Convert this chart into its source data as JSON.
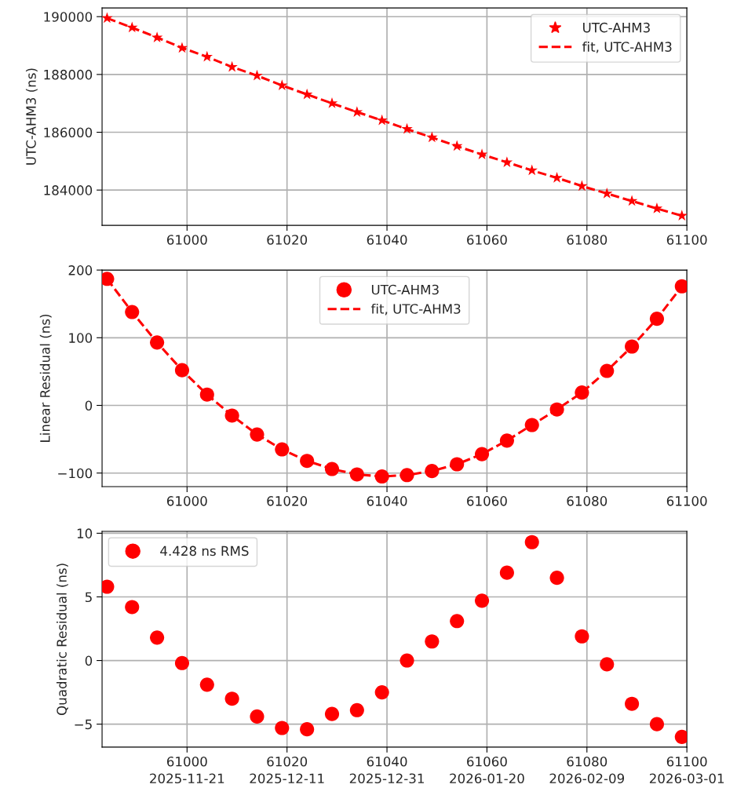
{
  "chart_data": [
    {
      "type": "scatter",
      "ylabel": "UTC-AHM3 (ns)",
      "xlim": [
        60983,
        61100
      ],
      "ylim": [
        182780,
        190300
      ],
      "xticks": [
        61000,
        61020,
        61040,
        61060,
        61080,
        61100
      ],
      "yticks": [
        184000,
        186000,
        188000,
        190000
      ],
      "grid": true,
      "legend": "top right",
      "x": [
        60984,
        60989,
        60994,
        60999,
        61004,
        61009,
        61014,
        61019,
        61024,
        61029,
        61034,
        61039,
        61044,
        61049,
        61054,
        61059,
        61064,
        61069,
        61074,
        61079,
        61084,
        61089,
        61094,
        61099
      ],
      "series": [
        {
          "name": "UTC-AHM3",
          "marker": "star",
          "color": "#ff0000",
          "values": [
            189950,
            189620,
            189280,
            188920,
            188610,
            188260,
            187960,
            187620,
            187310,
            187000,
            186700,
            186410,
            186110,
            185820,
            185520,
            185230,
            184960,
            184680,
            184420,
            184140,
            183880,
            183620,
            183360,
            183110
          ]
        },
        {
          "name": "fit, UTC-AHM3",
          "type": "line",
          "marker": "none",
          "line_style": "dashed",
          "color": "#ff0000",
          "values": [
            189950,
            189620,
            189280,
            188920,
            188610,
            188260,
            187960,
            187620,
            187310,
            187000,
            186700,
            186410,
            186110,
            185820,
            185520,
            185230,
            184960,
            184680,
            184420,
            184140,
            183880,
            183620,
            183360,
            183110
          ]
        }
      ]
    },
    {
      "type": "scatter",
      "ylabel": "Linear Residual (ns)",
      "xlim": [
        60983,
        61100
      ],
      "ylim": [
        -120,
        200
      ],
      "xticks": [
        61000,
        61020,
        61040,
        61060,
        61080,
        61100
      ],
      "yticks": [
        {
          "value": -100,
          "label": "−100"
        },
        0,
        100,
        200
      ],
      "grid": true,
      "legend": "top",
      "x": [
        60984,
        60989,
        60994,
        60999,
        61004,
        61009,
        61014,
        61019,
        61024,
        61029,
        61034,
        61039,
        61044,
        61049,
        61054,
        61059,
        61064,
        61069,
        61074,
        61079,
        61084,
        61089,
        61094,
        61099
      ],
      "series": [
        {
          "name": "UTC-AHM3",
          "marker": "circle",
          "color": "#ff0000",
          "values": [
            187,
            138,
            93,
            52,
            16,
            -15,
            -43,
            -65,
            -82,
            -94,
            -102,
            -105,
            -103,
            -97,
            -87,
            -72,
            -52,
            -29,
            -6,
            19,
            51,
            87,
            128,
            176
          ]
        },
        {
          "name": "fit, UTC-AHM3",
          "type": "line",
          "marker": "none",
          "line_style": "dashed",
          "color": "#ff0000",
          "values": [
            187,
            138,
            93,
            52,
            16,
            -15,
            -43,
            -65,
            -82,
            -94,
            -102,
            -105,
            -103,
            -97,
            -87,
            -72,
            -52,
            -29,
            -6,
            19,
            51,
            87,
            128,
            176
          ]
        }
      ]
    },
    {
      "type": "scatter",
      "ylabel": "Quadratic Residual (ns)",
      "xlim": [
        60983,
        61100
      ],
      "ylim": [
        -6.8,
        10.15
      ],
      "xticks": [
        61000,
        61020,
        61040,
        61060,
        61080,
        61100
      ],
      "x2lim": [
        "2025-11-04",
        "2026-03-01"
      ],
      "x2ticks": [
        "2025-11-21",
        "2025-12-11",
        "2025-12-31",
        "2026-01-20",
        "2026-02-09",
        "2026-03-01"
      ],
      "yticks": [
        {
          "value": -5,
          "label": "−5"
        },
        0,
        5,
        10
      ],
      "grid": true,
      "legend": "top left",
      "x": [
        60984,
        60989,
        60994,
        60999,
        61004,
        61009,
        61014,
        61019,
        61024,
        61029,
        61034,
        61039,
        61044,
        61049,
        61054,
        61059,
        61064,
        61069,
        61074,
        61079,
        61084,
        61089,
        61094,
        61099
      ],
      "series": [
        {
          "name": "4.428 ns RMS",
          "marker": "circle",
          "color": "#ff0000",
          "values": [
            5.8,
            4.2,
            1.8,
            -0.2,
            -1.9,
            -3.0,
            -4.4,
            -5.3,
            -5.4,
            -4.2,
            -3.9,
            -2.5,
            0.0,
            1.5,
            3.1,
            4.7,
            6.9,
            9.3,
            6.5,
            1.9,
            -0.3,
            -3.4,
            -5.0,
            -6.0
          ]
        }
      ]
    }
  ]
}
